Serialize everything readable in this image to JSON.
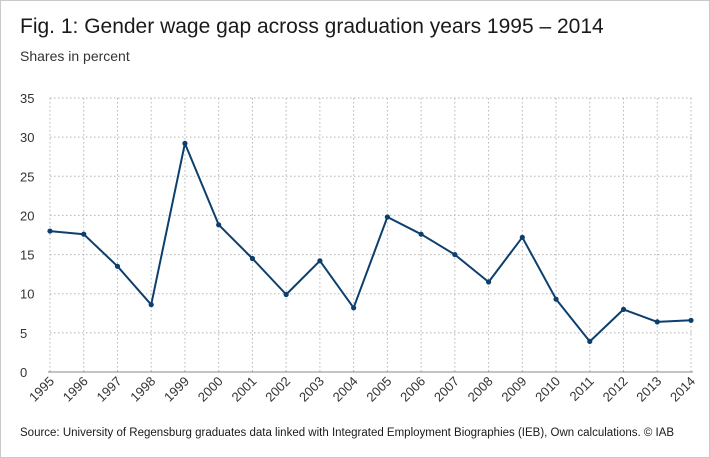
{
  "header": {
    "title": "Fig. 1: Gender wage gap across graduation years 1995 – 2014",
    "subtitle": "Shares in percent"
  },
  "footer": {
    "source": "Source: University of Regensburg graduates data  linked with Integrated Employment Biographies (IEB), Own calculations. © IAB"
  },
  "colors": {
    "line": "#0d3f6e",
    "grid": "#b5b5b5",
    "axis_text": "#333333"
  },
  "chart_data": {
    "type": "line",
    "title": "Fig. 1: Gender wage gap across graduation years 1995 – 2014",
    "subtitle": "Shares in percent",
    "xlabel": "",
    "ylabel": "",
    "categories": [
      "1995",
      "1996",
      "1997",
      "1998",
      "1999",
      "2000",
      "2001",
      "2002",
      "2003",
      "2004",
      "2005",
      "2006",
      "2007",
      "2008",
      "2009",
      "2010",
      "2011",
      "2012",
      "2013",
      "2014"
    ],
    "series": [
      {
        "values": [
          18.0,
          17.6,
          13.5,
          8.6,
          29.2,
          18.8,
          14.5,
          9.9,
          14.2,
          8.2,
          19.8,
          17.6,
          15.0,
          11.5,
          17.2,
          9.3,
          3.9,
          8.0,
          6.4,
          6.6
        ]
      }
    ],
    "ylim": [
      0,
      35
    ],
    "yticks": [
      "0",
      "5",
      "10",
      "15",
      "20",
      "25",
      "30",
      "35"
    ],
    "grid": true,
    "grid_style": "dotted",
    "legend": "none"
  }
}
